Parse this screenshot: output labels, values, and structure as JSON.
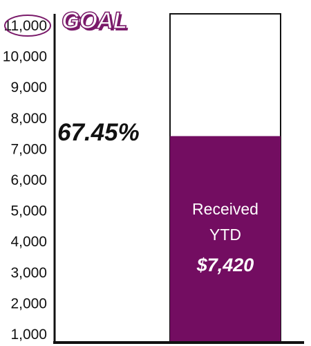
{
  "chart_data": {
    "type": "bar",
    "goal_label": "GOAL",
    "y_ticks": [
      "1,000",
      "2,000",
      "3,000",
      "4,000",
      "5,000",
      "6,000",
      "7,000",
      "8,000",
      "9,000",
      "10,000",
      "11,000"
    ],
    "highlighted_tick": "11,000",
    "ylim": [
      1000,
      11000
    ],
    "goal": 11000,
    "value": 7420,
    "percent_label": "67.45%",
    "bar_caption_line1": "Received",
    "bar_caption_line2": "YTD",
    "value_label": "$7,420",
    "colors": {
      "fill": "#730d61",
      "outline": "#111111",
      "axis": "#111111",
      "goal_accent": "#7a1a6a"
    },
    "grid": false,
    "legend": "none"
  }
}
